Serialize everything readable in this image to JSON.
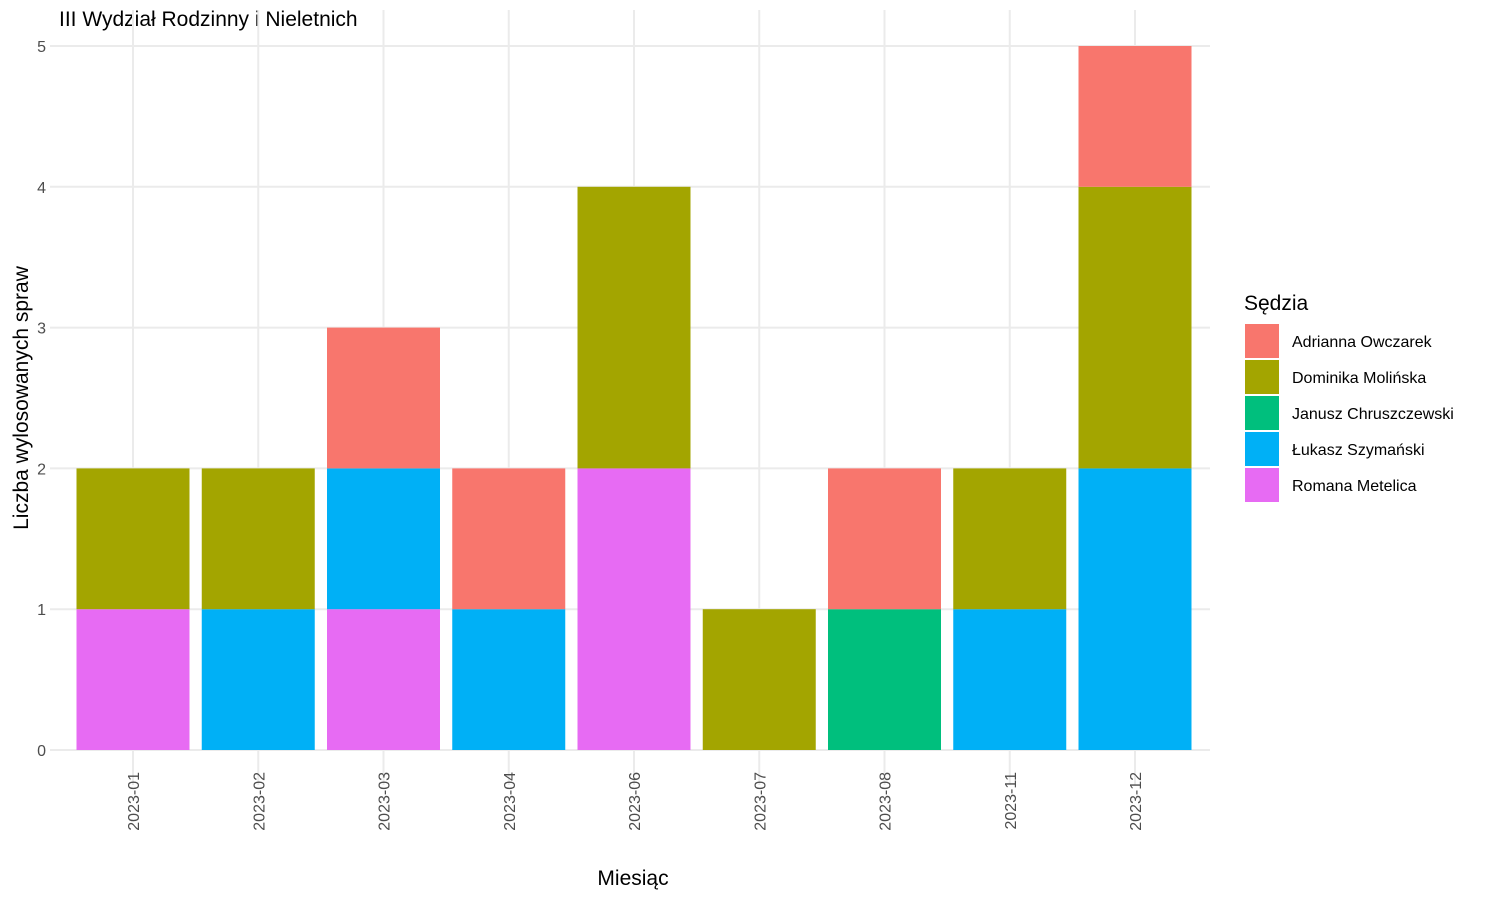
{
  "chart_data": {
    "type": "bar",
    "stacked": true,
    "title": "III Wydział Rodzinny i Nieletnich",
    "xlabel": "Miesiąc",
    "ylabel": "Liczba wylosowanych spraw",
    "ylim": [
      0,
      5
    ],
    "yticks": [
      "0",
      "1",
      "2",
      "3",
      "4",
      "5"
    ],
    "grid": true,
    "legend_position": "right",
    "legend_title": "Sędzia",
    "categories": [
      "2023-01",
      "2023-02",
      "2023-03",
      "2023-04",
      "2023-06",
      "2023-07",
      "2023-08",
      "2023-11",
      "2023-12"
    ],
    "series": [
      {
        "name": "Adrianna Owczarek",
        "color": "#F8766D",
        "values": [
          0,
          0,
          1,
          1,
          0,
          0,
          1,
          0,
          1
        ]
      },
      {
        "name": "Dominika Molińska",
        "color": "#A3A500",
        "values": [
          1,
          1,
          0,
          0,
          2,
          1,
          0,
          1,
          2
        ]
      },
      {
        "name": "Janusz Chruszczewski",
        "color": "#00BF7D",
        "values": [
          0,
          0,
          0,
          0,
          0,
          0,
          1,
          0,
          0
        ]
      },
      {
        "name": "Łukasz Szymański",
        "color": "#00B0F6",
        "values": [
          0,
          1,
          1,
          1,
          0,
          0,
          0,
          1,
          2
        ]
      },
      {
        "name": "Romana Metelica",
        "color": "#E76BF3",
        "values": [
          1,
          0,
          1,
          0,
          2,
          0,
          0,
          0,
          0
        ]
      }
    ]
  }
}
